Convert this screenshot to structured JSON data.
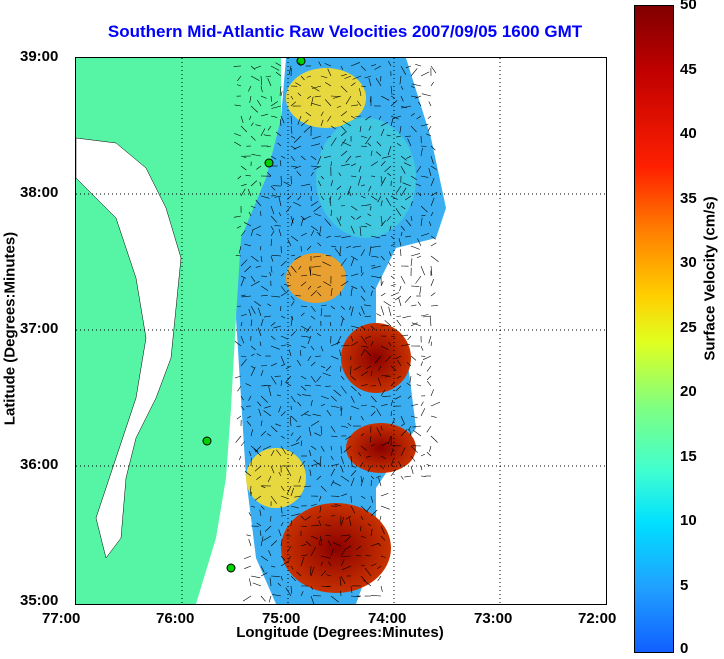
{
  "title": "Southern Mid-Atlantic Raw Velocities 2007/09/05 1600 GMT",
  "xlabel": "Longitude (Degrees:Minutes)",
  "ylabel": "Latitude (Degrees:Minutes)",
  "colorbar_label": "Surface Velocity (cm/s)",
  "x_ticks": [
    "77:00",
    "76:00",
    "75:00",
    "74:00",
    "73:00",
    "72:00"
  ],
  "y_ticks": [
    "39:00",
    "38:00",
    "37:00",
    "36:00",
    "35:00"
  ],
  "colorbar_ticks": [
    "50",
    "45",
    "40",
    "35",
    "30",
    "25",
    "20",
    "15",
    "10",
    "5",
    "0"
  ],
  "colors": {
    "land": "#55f5a5",
    "title": "#0000ff"
  }
}
